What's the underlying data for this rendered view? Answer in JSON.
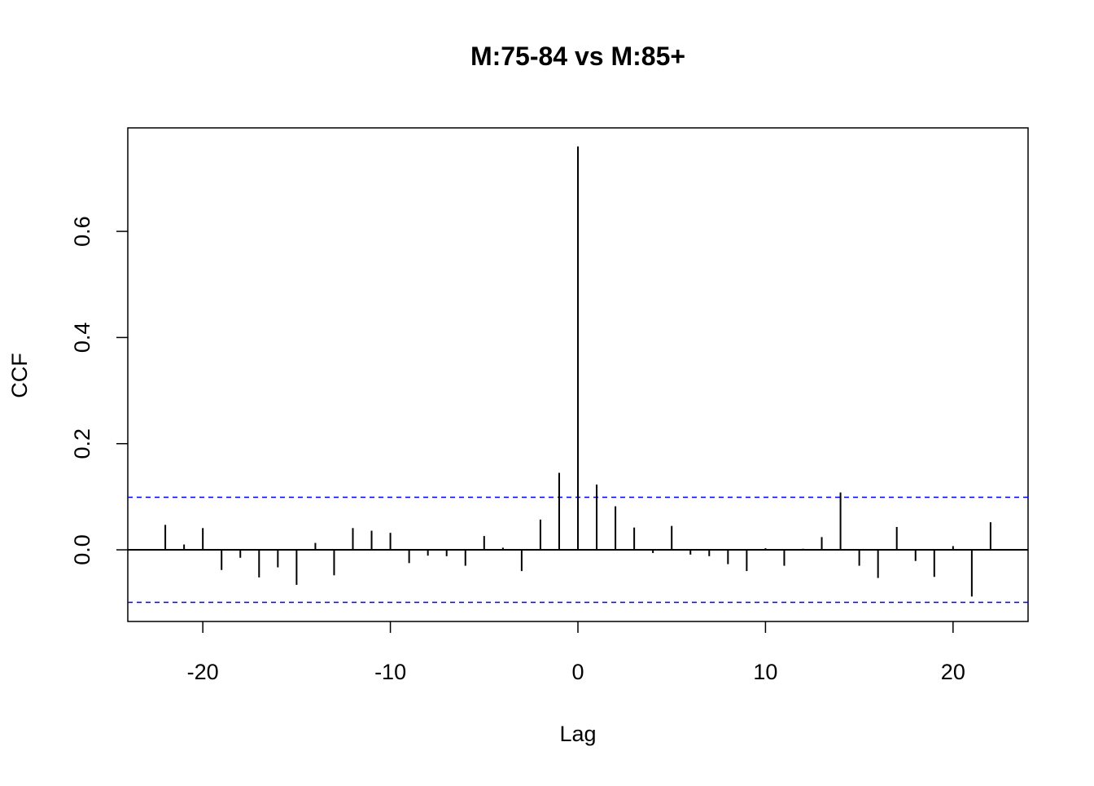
{
  "chart_data": {
    "type": "bar",
    "title": "M:75-84 vs M:85+",
    "xlabel": "Lag",
    "ylabel": "CCF",
    "xlim": [
      -24,
      24
    ],
    "ylim": [
      -0.135,
      0.795
    ],
    "xticks": [
      -20,
      -10,
      0,
      10,
      20
    ],
    "xtick_labels": [
      "-20",
      "-10",
      "0",
      "10",
      "20"
    ],
    "yticks": [
      0.0,
      0.2,
      0.4,
      0.6
    ],
    "ytick_labels": [
      "0.0",
      "0.2",
      "0.4",
      "0.6"
    ],
    "grid": false,
    "confidence_bound": 0.099,
    "confidence_color": "#0000ff",
    "series": [
      {
        "x": [
          -22,
          -21,
          -20,
          -19,
          -18,
          -17,
          -16,
          -15,
          -14,
          -13,
          -12,
          -11,
          -10,
          -9,
          -8,
          -7,
          -6,
          -5,
          -4,
          -3,
          -2,
          -1,
          0,
          1,
          2,
          3,
          4,
          5,
          6,
          7,
          8,
          9,
          10,
          11,
          12,
          13,
          14,
          15,
          16,
          17,
          18,
          19,
          20,
          21,
          22
        ],
        "values": [
          0.047,
          0.01,
          0.041,
          -0.038,
          -0.015,
          -0.052,
          -0.033,
          -0.066,
          0.013,
          -0.048,
          0.041,
          0.036,
          0.032,
          -0.025,
          -0.011,
          -0.012,
          -0.03,
          0.026,
          0.004,
          -0.04,
          0.057,
          0.145,
          0.76,
          0.123,
          0.082,
          0.042,
          -0.006,
          0.045,
          -0.009,
          -0.012,
          -0.027,
          -0.04,
          0.003,
          -0.03,
          0.002,
          0.024,
          0.108,
          -0.03,
          -0.053,
          0.043,
          -0.021,
          -0.051,
          0.007,
          -0.088,
          0.052
        ]
      }
    ]
  }
}
